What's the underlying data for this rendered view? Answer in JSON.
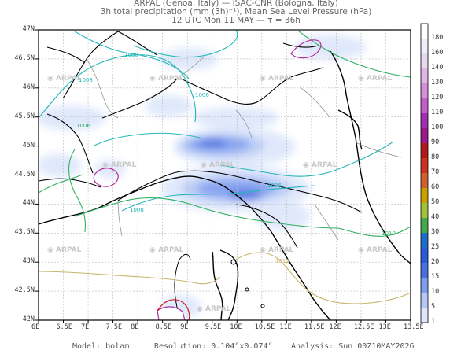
{
  "header": {
    "line1": "ARPAL (Genoa, Italy)  —  ISAC-CNR (Bologna, Italy)",
    "line2": "3h total precipitation (mm (3h)⁻¹), Mean Sea Level Pressure (hPa)",
    "line3": "12 UTC Mon 11 MAY  —  τ = 36h"
  },
  "axes": {
    "lat_labels": [
      "47N",
      "46.5N",
      "46N",
      "45.5N",
      "45N",
      "44.5N",
      "44N",
      "43.5N",
      "43N",
      "42.5N",
      "42N"
    ],
    "lon_labels": [
      "6E",
      "6.5E",
      "7E",
      "7.5E",
      "8E",
      "8.5E",
      "9E",
      "9.5E",
      "10E",
      "10.5E",
      "11E",
      "11.5E",
      "12E",
      "12.5E",
      "13E",
      "13.5E"
    ]
  },
  "colorbar": {
    "levels": [
      "180",
      "160",
      "140",
      "130",
      "120",
      "110",
      "100",
      "90",
      "80",
      "70",
      "60",
      "50",
      "40",
      "30",
      "25",
      "20",
      "15",
      "10",
      "5",
      "1"
    ],
    "colors": [
      "#ffffff",
      "#f0eef8",
      "#e6d9f0",
      "#e0b6e6",
      "#d68fd8",
      "#c060c8",
      "#a030b0",
      "#9a1a8c",
      "#b01a1a",
      "#d03020",
      "#d06030",
      "#c8a000",
      "#9fc23a",
      "#45a84a",
      "#1c6ec8",
      "#2a5ad8",
      "#4a70e0",
      "#7e9cef",
      "#b4c8f6",
      "#dde6fb"
    ]
  },
  "isobars": [
    "1008",
    "1008",
    "1006",
    "1006",
    "1006",
    "1008",
    "1010",
    "1012"
  ],
  "watermarks": [
    "ARPAL",
    "ARPAL",
    "ARPAL",
    "ARPAL",
    "ARPAL",
    "ARPAL",
    "ARPAL",
    "ARPAL",
    "ARPAL",
    "ARPAL",
    "ARPAL",
    "ARPAL"
  ],
  "footer": {
    "model": "Model: bolam",
    "resolution": "Resolution: 0.104°x0.074°",
    "analysis": "Analysis: Sun 00Z10MAY2026"
  }
}
